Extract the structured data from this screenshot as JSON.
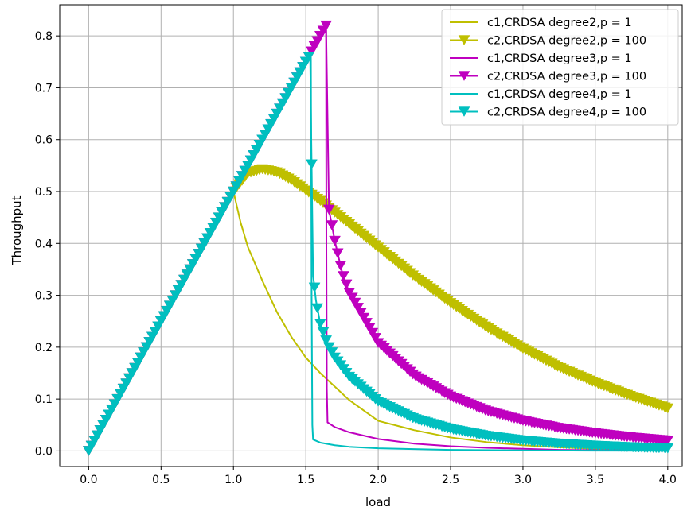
{
  "chart_data": {
    "type": "line",
    "title": "",
    "xlabel": "load",
    "ylabel": "Throughput",
    "xlim": [
      -0.2,
      4.1
    ],
    "ylim": [
      -0.03,
      0.86
    ],
    "xticks": [
      0.0,
      0.5,
      1.0,
      1.5,
      2.0,
      2.5,
      3.0,
      3.5,
      4.0
    ],
    "xtick_labels": [
      "0.0",
      "0.5",
      "1.0",
      "1.5",
      "2.0",
      "2.5",
      "3.0",
      "3.5",
      "4.0"
    ],
    "yticks": [
      0.0,
      0.1,
      0.2,
      0.3,
      0.4,
      0.5,
      0.6,
      0.7,
      0.8
    ],
    "ytick_labels": [
      "0.0",
      "0.1",
      "0.2",
      "0.3",
      "0.4",
      "0.5",
      "0.6",
      "0.7",
      "0.8"
    ],
    "grid": true,
    "legend_position": "top-right",
    "series": [
      {
        "name": "c1,CRDSA degree2,p = 1",
        "color": "#bfbf00",
        "marker": "none",
        "x": [
          0.0,
          1.0,
          1.05,
          1.1,
          1.2,
          1.3,
          1.4,
          1.5,
          1.6,
          1.8,
          2.0,
          2.25,
          2.5,
          2.75,
          3.0,
          3.25,
          3.5,
          3.75,
          4.0
        ],
        "y": [
          0.0,
          0.5,
          0.44,
          0.393,
          0.328,
          0.268,
          0.22,
          0.18,
          0.15,
          0.098,
          0.058,
          0.04,
          0.026,
          0.017,
          0.011,
          0.007,
          0.004,
          0.002,
          0.001
        ]
      },
      {
        "name": "c2,CRDSA degree2,p = 100",
        "color": "#bfbf00",
        "marker": "triangle-down",
        "x": [
          0.0,
          1.0,
          1.1,
          1.2,
          1.3,
          1.4,
          1.6,
          1.8,
          2.0,
          2.25,
          2.5,
          2.75,
          3.0,
          3.25,
          3.5,
          3.75,
          4.0
        ],
        "y": [
          0.0,
          0.5,
          0.535,
          0.543,
          0.537,
          0.522,
          0.482,
          0.437,
          0.392,
          0.336,
          0.285,
          0.238,
          0.197,
          0.161,
          0.131,
          0.105,
          0.082
        ]
      },
      {
        "name": "c1,CRDSA degree3,p = 1",
        "color": "#bf00bf",
        "marker": "none",
        "x": [
          0.0,
          1.64,
          1.642,
          1.645,
          1.65,
          1.7,
          1.8,
          2.0,
          2.25,
          2.5,
          2.75,
          3.0,
          3.25,
          3.5,
          3.75,
          4.0
        ],
        "y": [
          0.0,
          0.82,
          0.4,
          0.12,
          0.055,
          0.046,
          0.036,
          0.023,
          0.014,
          0.009,
          0.006,
          0.004,
          0.002,
          0.0015,
          0.001,
          0.0005
        ]
      },
      {
        "name": "c2,CRDSA degree3,p = 100",
        "color": "#bf00bf",
        "marker": "triangle-down",
        "x": [
          0.0,
          1.64,
          1.66,
          1.7,
          1.75,
          1.8,
          2.0,
          2.25,
          2.5,
          2.75,
          3.0,
          3.25,
          3.5,
          3.75,
          4.0
        ],
        "y": [
          0.0,
          0.82,
          0.465,
          0.405,
          0.345,
          0.305,
          0.208,
          0.145,
          0.105,
          0.077,
          0.058,
          0.044,
          0.034,
          0.026,
          0.02
        ]
      },
      {
        "name": "c1,CRDSA degree4,p = 1",
        "color": "#00bfbf",
        "marker": "none",
        "x": [
          0.0,
          1.535,
          1.54,
          1.545,
          1.55,
          1.6,
          1.7,
          1.8,
          2.0,
          2.5,
          3.0,
          3.5,
          4.0
        ],
        "y": [
          0.0,
          0.76,
          0.3,
          0.05,
          0.022,
          0.016,
          0.011,
          0.008,
          0.005,
          0.002,
          0.001,
          0.0005,
          0.0003
        ]
      },
      {
        "name": "c2,CRDSA degree4,p = 100",
        "color": "#00bfbf",
        "marker": "triangle-down",
        "x": [
          0.0,
          1.53,
          1.55,
          1.57,
          1.6,
          1.65,
          1.7,
          1.8,
          2.0,
          2.25,
          2.5,
          2.75,
          3.0,
          3.25,
          3.5,
          3.75,
          4.0
        ],
        "y": [
          0.0,
          0.765,
          0.34,
          0.29,
          0.245,
          0.205,
          0.18,
          0.143,
          0.095,
          0.062,
          0.042,
          0.029,
          0.02,
          0.014,
          0.01,
          0.007,
          0.005
        ]
      }
    ]
  }
}
